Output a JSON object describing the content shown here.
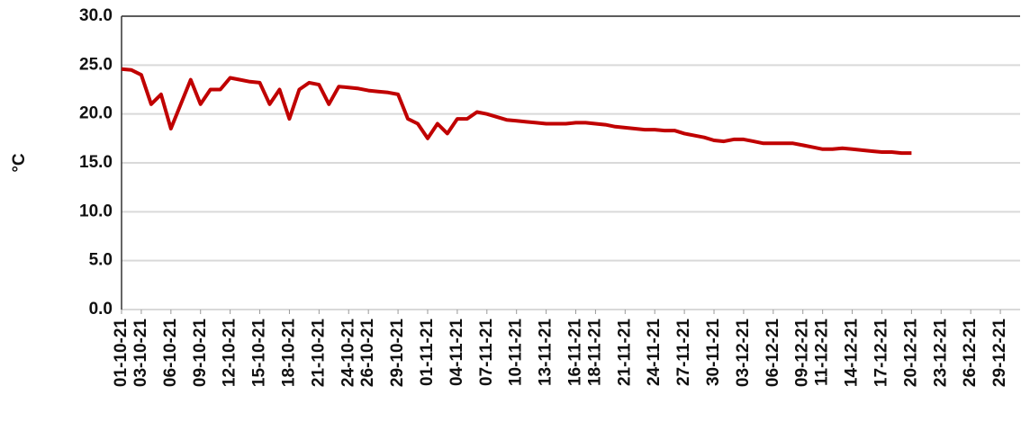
{
  "chart_data": {
    "type": "line",
    "y_label": "°C",
    "x": [
      "01-10-21",
      "02-10-21",
      "03-10-21",
      "04-10-21",
      "05-10-21",
      "06-10-21",
      "07-10-21",
      "08-10-21",
      "09-10-21",
      "10-10-21",
      "11-10-21",
      "12-10-21",
      "13-10-21",
      "14-10-21",
      "15-10-21",
      "16-10-21",
      "17-10-21",
      "18-10-21",
      "19-10-21",
      "20-10-21",
      "21-10-21",
      "22-10-21",
      "23-10-21",
      "24-10-21",
      "25-10-21",
      "26-10-21",
      "27-10-21",
      "28-10-21",
      "29-10-21",
      "30-10-21",
      "31-10-21",
      "01-11-21",
      "02-11-21",
      "03-11-21",
      "04-11-21",
      "05-11-21",
      "06-11-21",
      "07-11-21",
      "08-11-21",
      "09-11-21",
      "10-11-21",
      "11-11-21",
      "12-11-21",
      "13-11-21",
      "14-11-21",
      "15-11-21",
      "16-11-21",
      "17-11-21",
      "18-11-21",
      "19-11-21",
      "20-11-21",
      "21-11-21",
      "22-11-21",
      "23-11-21",
      "24-11-21",
      "25-11-21",
      "26-11-21",
      "27-11-21",
      "28-11-21",
      "29-11-21",
      "30-11-21",
      "01-12-21",
      "02-12-21",
      "03-12-21",
      "04-12-21",
      "05-12-21",
      "06-12-21",
      "07-12-21",
      "08-12-21",
      "09-12-21",
      "10-12-21",
      "11-12-21",
      "12-12-21",
      "13-12-21",
      "14-12-21",
      "15-12-21",
      "16-12-21",
      "17-12-21",
      "18-12-21",
      "19-12-21",
      "20-12-21"
    ],
    "series": [
      {
        "color": "#c00000",
        "values": [
          24.6,
          24.5,
          24.0,
          21.0,
          22.0,
          18.5,
          21.0,
          23.5,
          21.0,
          22.5,
          22.5,
          23.7,
          23.5,
          23.3,
          23.2,
          21.0,
          22.5,
          19.5,
          22.5,
          23.2,
          23.0,
          21.0,
          22.8,
          22.7,
          22.6,
          22.4,
          22.3,
          22.2,
          22.0,
          19.5,
          19.0,
          17.5,
          19.0,
          18.0,
          19.5,
          19.5,
          20.2,
          20.0,
          19.7,
          19.4,
          19.3,
          19.2,
          19.1,
          19.0,
          19.0,
          19.0,
          19.1,
          19.1,
          19.0,
          18.9,
          18.7,
          18.6,
          18.5,
          18.4,
          18.4,
          18.3,
          18.3,
          18.0,
          17.8,
          17.6,
          17.3,
          17.2,
          17.4,
          17.4,
          17.2,
          17.0,
          17.0,
          17.0,
          17.0,
          16.8,
          16.6,
          16.4,
          16.4,
          16.5,
          16.4,
          16.3,
          16.2,
          16.1,
          16.1,
          16.0,
          16.0
        ]
      }
    ],
    "xlim": [
      "01-10-21",
      "31-12-21"
    ],
    "xticks": [
      "01-10-21",
      "03-10-21",
      "06-10-21",
      "09-10-21",
      "12-10-21",
      "15-10-21",
      "18-10-21",
      "21-10-21",
      "24-10-21",
      "26-10-21",
      "29-10-21",
      "01-11-21",
      "04-11-21",
      "07-11-21",
      "10-11-21",
      "13-11-21",
      "16-11-21",
      "18-11-21",
      "21-11-21",
      "24-11-21",
      "27-11-21",
      "30-11-21",
      "03-12-21",
      "06-12-21",
      "09-12-21",
      "11-12-21",
      "14-12-21",
      "17-12-21",
      "20-12-21",
      "23-12-21",
      "26-12-21",
      "29-12-21"
    ],
    "ylim": [
      0,
      30
    ],
    "yticks": [
      {
        "value": 0,
        "label": "0.0"
      },
      {
        "value": 5,
        "label": "5.0"
      },
      {
        "value": 10,
        "label": "10.0"
      },
      {
        "value": 15,
        "label": "15.0"
      },
      {
        "value": 20,
        "label": "20.0"
      },
      {
        "value": 25,
        "label": "25.0"
      },
      {
        "value": 30,
        "label": "30.0"
      }
    ],
    "grid": true
  }
}
